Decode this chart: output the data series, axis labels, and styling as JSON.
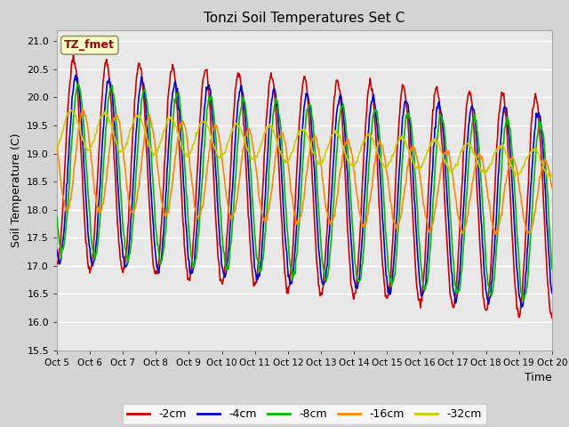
{
  "title": "Tonzi Soil Temperatures Set C",
  "xlabel": "Time",
  "ylabel": "Soil Temperature (C)",
  "ylim": [
    15.5,
    21.2
  ],
  "xlim": [
    0,
    15
  ],
  "fig_facecolor": "#d4d4d4",
  "plot_facecolor": "#e8e8e8",
  "grid_color": "#ffffff",
  "xtick_labels": [
    "Oct 5",
    "Oct 6",
    "Oct 7",
    "Oct 8",
    "Oct 9",
    "Oct 10",
    "Oct 11",
    "Oct 12",
    "Oct 13",
    "Oct 14",
    "Oct 15",
    "Oct 16",
    "Oct 17",
    "Oct 18",
    "Oct 19",
    "Oct 20"
  ],
  "xtick_positions": [
    0,
    1,
    2,
    3,
    4,
    5,
    6,
    7,
    8,
    9,
    10,
    11,
    12,
    13,
    14,
    15
  ],
  "ytick_values": [
    15.5,
    16.0,
    16.5,
    17.0,
    17.5,
    18.0,
    18.5,
    19.0,
    19.5,
    20.0,
    20.5,
    21.0
  ],
  "legend_label": "TZ_fmet",
  "series_labels": [
    "-2cm",
    "-4cm",
    "-8cm",
    "-16cm",
    "-32cm"
  ],
  "series_colors": [
    "#cc0000",
    "#0000cc",
    "#00bb00",
    "#ff8800",
    "#cccc00"
  ]
}
